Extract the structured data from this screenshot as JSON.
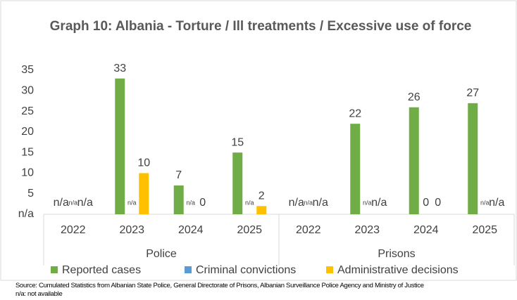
{
  "chart_data": {
    "type": "bar",
    "title": "Graph 10: Albania - Torture / Ill treatments / Excessive use of force",
    "groups": [
      "Police",
      "Prisons"
    ],
    "categories": [
      "2022",
      "2023",
      "2024",
      "2025",
      "2022",
      "2023",
      "2024",
      "2025"
    ],
    "series": [
      {
        "name": "Reported cases",
        "color": "#70ad47",
        "values": [
          null,
          33,
          7,
          15,
          null,
          22,
          26,
          27
        ],
        "value_labels": [
          "n/a",
          "33",
          "7",
          "15",
          "n/a",
          "22",
          "26",
          "27"
        ]
      },
      {
        "name": "Criminal convictions",
        "color": "#5b9bd5",
        "values": [
          null,
          null,
          null,
          null,
          null,
          null,
          0,
          null
        ],
        "value_labels": [
          "n/a",
          "n/a",
          "n/a",
          "n/a",
          "n/a",
          "n/a",
          "0",
          "n/a"
        ]
      },
      {
        "name": "Administrative decisions",
        "color": "#ffc000",
        "values": [
          null,
          10,
          0,
          2,
          null,
          null,
          0,
          null
        ],
        "value_labels": [
          "n/a",
          "10",
          "0",
          "2",
          "n/a",
          "n/a",
          "0",
          "n/a"
        ]
      }
    ],
    "ylim": [
      0,
      35
    ],
    "yticks": [
      {
        "value": 0,
        "label": "n/a"
      },
      5,
      10,
      15,
      20,
      25,
      30,
      35
    ],
    "grid": false,
    "legend": "bottom",
    "source": "Source: Cumulated Statistics from Albanian State Police, General Directorate of Prisons, Albanian Surveillance Police Agency and Ministry of Justice",
    "note": "n/a: not available"
  }
}
